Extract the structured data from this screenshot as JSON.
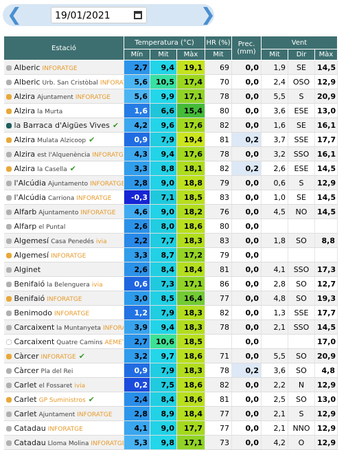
{
  "date": "19/01/2021",
  "table": {
    "headers": {
      "station": "Estació",
      "temp": "Temperatura (°C)",
      "hr": "HR (%)",
      "prec": "Prec. (mm)",
      "wind": "Vent",
      "sub": [
        "Mín",
        "Mit",
        "Màx",
        "Mit",
        "Mit",
        "Dir",
        "Màx"
      ]
    },
    "rows": [
      {
        "name": "Alberic",
        "tag": "INFORATGE",
        "dot": "#b0b0b0",
        "cells": [
          "2,7",
          "9,4",
          "19,1",
          "69",
          "0,0",
          "1,9",
          "SE",
          "14,5"
        ]
      },
      {
        "name": "Alberic",
        "detail": "Urb. San Cristòbal",
        "tag": "INFORATGE",
        "dot": "#b0b0b0",
        "cells": [
          "5,6",
          "10,5",
          "17,4",
          "70",
          "0,0",
          "2,4",
          "OSO",
          "12,9"
        ]
      },
      {
        "name": "Alzira",
        "detail": "Ajuntament",
        "tag": "INFORATGE",
        "dot": "#e8a838",
        "cells": [
          "5,6",
          "9,9",
          "17,1",
          "78",
          "0,0",
          "5,5",
          "S",
          "20,9"
        ]
      },
      {
        "name": "Alzira",
        "detail": "la Murta",
        "dot": "#e8a838",
        "cells": [
          "1,6",
          "6,6",
          "15,4",
          "80",
          "0,0",
          "3,6",
          "ESE",
          "13,0"
        ]
      },
      {
        "name": "la Barraca d'Aigües Vives",
        "check": true,
        "dot": "#1f5e5e",
        "cells": [
          "4,2",
          "9,6",
          "17,6",
          "82",
          "0,0",
          "1,6",
          "SE",
          "16,1"
        ]
      },
      {
        "name": "Alzira",
        "detail": "Mulata Alzicoop",
        "check": true,
        "dot": "#e8a838",
        "cells": [
          "0,9",
          "7,9",
          "19,4",
          "81",
          "0,2",
          "3,7",
          "SSE",
          "17,7"
        ]
      },
      {
        "name": "Alzira",
        "detail": "est l'Alquenència",
        "tag": "INFORATGE",
        "dot": "#b0b0b0",
        "cells": [
          "4,3",
          "9,4",
          "17,6",
          "78",
          "0,0",
          "3,2",
          "SSO",
          "16,1"
        ]
      },
      {
        "name": "Alzira",
        "detail": "la Casella",
        "check": true,
        "dot": "#e8a838",
        "cells": [
          "3,3",
          "8,8",
          "18,1",
          "82",
          "0,2",
          "2,6",
          "ESE",
          "14,5"
        ]
      },
      {
        "name": "l'Alcúdia",
        "detail": "Ajuntamento",
        "tag": "INFORATGE",
        "dot": "#b0b0b0",
        "cells": [
          "2,8",
          "9,0",
          "18,8",
          "79",
          "0,0",
          "0,6",
          "S",
          "12,9"
        ]
      },
      {
        "name": "l'Alcúdia",
        "detail": "Carriona",
        "tag": "INFORATGE",
        "dot": "#b0b0b0",
        "cells": [
          "-0,3",
          "7,1",
          "18,5",
          "83",
          "0,0",
          "1,0",
          "SE",
          "14,5"
        ]
      },
      {
        "name": "Alfarb",
        "detail": "Ajuntamento",
        "tag": "INFORATGE",
        "dot": "#b0b0b0",
        "cells": [
          "4,6",
          "9,0",
          "18,2",
          "76",
          "0,0",
          "4,5",
          "NO",
          "14,5"
        ]
      },
      {
        "name": "Alfarp",
        "detail": "el Puntal",
        "dot": "#b0b0b0",
        "cells": [
          "2,6",
          "8,0",
          "18,6",
          "80",
          "0,0",
          null,
          null,
          null
        ]
      },
      {
        "name": "Algemesí",
        "detail": "Casa Penedés",
        "tag": "ivia",
        "dot": "#b0b0b0",
        "cells": [
          "2,2",
          "7,7",
          "18,3",
          "83",
          "0,0",
          "1,8",
          "SO",
          "8,8"
        ]
      },
      {
        "name": "Algemesí",
        "tag": "INFORATGE",
        "dot": "#e8a838",
        "cells": [
          "3,3",
          "8,7",
          "17,2",
          "79",
          "0,0",
          null,
          null,
          null
        ]
      },
      {
        "name": "Alginet",
        "dot": "#b0b0b0",
        "cells": [
          "2,6",
          "8,4",
          "18,4",
          "81",
          "0,0",
          "4,1",
          "SSO",
          "17,3"
        ]
      },
      {
        "name": "Benifaió",
        "detail": "la Belenguera",
        "tag": "ivia",
        "dot": "#b0b0b0",
        "cells": [
          "0,6",
          "7,3",
          "17,1",
          "86",
          "0,0",
          "2,8",
          "SO",
          "12,7"
        ]
      },
      {
        "name": "Benifaió",
        "tag": "INFORATGE",
        "dot": "#e8a838",
        "cells": [
          "3,0",
          "8,5",
          "16,4",
          "77",
          "0,0",
          "4,8",
          "SO",
          "19,3"
        ]
      },
      {
        "name": "Benimodo",
        "tag": "INFORATGE",
        "dot": "#b0b0b0",
        "cells": [
          "1,2",
          "7,9",
          "18,3",
          "82",
          "0,0",
          "1,3",
          "SSE",
          "17,7"
        ]
      },
      {
        "name": "Carcaixent",
        "detail": "la Muntanyeta",
        "tag": "INFORATGE",
        "dot": "#b0b0b0",
        "cells": [
          "3,9",
          "9,4",
          "18,3",
          "78",
          "0,0",
          "2,1",
          "SSO",
          "14,5"
        ]
      },
      {
        "name": "Carcaixent",
        "detail": "Quatre Camins",
        "tag": "AEMET",
        "dot": "#ffffff",
        "cells": [
          "2,7",
          "10,6",
          "18,5",
          null,
          "0,0",
          null,
          null,
          "17,0"
        ]
      },
      {
        "name": "Càrcer",
        "tag": "INFORATGE",
        "check": true,
        "dot": "#e8a838",
        "cells": [
          "3,2",
          "9,7",
          "18,6",
          "71",
          "0,0",
          "5,5",
          "SO",
          "20,9"
        ]
      },
      {
        "name": "Càrcer",
        "detail": "Pla del Rei",
        "dot": "#b0b0b0",
        "cells": [
          "0,9",
          "7,9",
          "18,3",
          "78",
          "0,2",
          "3,6",
          "SO",
          "4,8"
        ]
      },
      {
        "name": "Carlet",
        "detail": "el Fossaret",
        "tag": "ivia",
        "dot": "#b0b0b0",
        "cells": [
          "0,2",
          "7,5",
          "18,6",
          "82",
          "0,0",
          "2,2",
          "N",
          "12,9"
        ]
      },
      {
        "name": "Carlet",
        "tag": "GP Suministros",
        "check": true,
        "dot": "#e8a838",
        "cells": [
          "2,4",
          "8,4",
          "18,6",
          "81",
          "0,0",
          "2,5",
          "SO",
          "13,0"
        ]
      },
      {
        "name": "Carlet",
        "detail": "Ajuntament",
        "tag": "INFORATGE",
        "dot": "#b0b0b0",
        "cells": [
          "2,8",
          "8,9",
          "18,4",
          "77",
          "0,0",
          "2,1",
          "S",
          "12,9"
        ]
      },
      {
        "name": "Catadau",
        "tag": "INFORATGE",
        "dot": "#b0b0b0",
        "cells": [
          "4,1",
          "9,0",
          "17,7",
          "77",
          "0,0",
          "2,1",
          "NNO",
          "12,9"
        ]
      },
      {
        "name": "Catadau",
        "detail": "Lloma Molina",
        "tag": "INFORATGE",
        "dot": "#b0b0b0",
        "cells": [
          "5,3",
          "9,8",
          "17,1",
          "73",
          "0,0",
          "4,2",
          "O",
          "12,9"
        ]
      }
    ]
  }
}
